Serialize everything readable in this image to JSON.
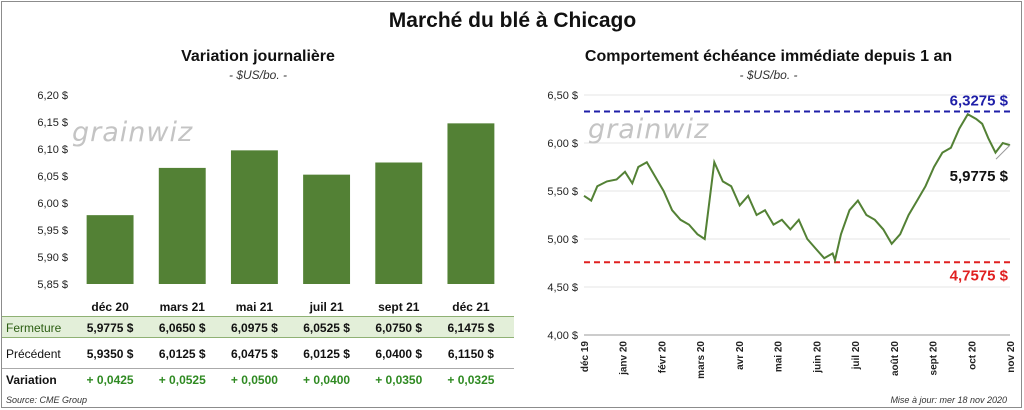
{
  "title": "Marché du blé à Chicago",
  "left": {
    "subtitle": "Variation journalière",
    "unit": "- $US/bo. -",
    "watermark_a": "grain",
    "watermark_b": "wiz",
    "y_ticks": [
      "6,20 $",
      "6,15 $",
      "6,10 $",
      "6,05 $",
      "6,00 $",
      "5,95 $",
      "5,90 $",
      "5,85 $"
    ],
    "table": {
      "close_label": "Fermeture",
      "prev_label": "Précédent",
      "var_label": "Variation",
      "close": [
        "5,9775  $",
        "6,0650  $",
        "6,0975  $",
        "6,0525  $",
        "6,0750  $",
        "6,1475  $"
      ],
      "prev": [
        "5,9350  $",
        "6,0125  $",
        "6,0475  $",
        "6,0125  $",
        "6,0400  $",
        "6,1150  $"
      ],
      "var": [
        "+ 0,0425",
        "+ 0,0525",
        "+ 0,0500",
        "+ 0,0400",
        "+ 0,0350",
        "+ 0,0325"
      ]
    }
  },
  "right": {
    "subtitle": "Comportement  échéance immédiate depuis 1 an",
    "unit": "- $US/bo. -",
    "watermark_a": "grain",
    "watermark_b": "wiz",
    "y_ticks": [
      "6,50 $",
      "6,00 $",
      "5,50 $",
      "5,00 $",
      "4,50 $",
      "4,00 $"
    ],
    "x_ticks": [
      "déc 19",
      "janv 20",
      "févr 20",
      "mars 20",
      "avr 20",
      "mai 20",
      "juin 20",
      "juil 20",
      "août 20",
      "sept 20",
      "oct 20",
      "nov 20"
    ],
    "high_label": "6,3275  $",
    "low_label": "4,7575  $",
    "last_label": "5,9775  $"
  },
  "colors": {
    "bar": "#538135",
    "line": "#538135",
    "high": "#1f1fa8",
    "low": "#e02020"
  },
  "source": "Source: CME Group",
  "updated": "Mise à jour: mer 18 nov 2020",
  "chart_data": [
    {
      "type": "bar",
      "categories": [
        "déc 20",
        "mars 21",
        "mai 21",
        "juil 21",
        "sept 21",
        "déc 21"
      ],
      "values": [
        5.9775,
        6.065,
        6.0975,
        6.0525,
        6.075,
        6.1475
      ],
      "title": "Variation journalière",
      "ylabel": "$US/bo.",
      "ylim": [
        5.85,
        6.2
      ]
    },
    {
      "type": "line",
      "title": "Comportement  échéance immédiate depuis 1 an",
      "ylabel": "$US/bo.",
      "ylim": [
        4.0,
        6.5
      ],
      "xlim": [
        "2019-12-01",
        "2020-11-18"
      ],
      "x": [
        "2019-12-01",
        "2019-12-07",
        "2019-12-12",
        "2019-12-20",
        "2019-12-28",
        "2020-01-04",
        "2020-01-10",
        "2020-01-15",
        "2020-01-22",
        "2020-01-29",
        "2020-02-05",
        "2020-02-12",
        "2020-02-19",
        "2020-02-26",
        "2020-03-04",
        "2020-03-10",
        "2020-03-14",
        "2020-03-18",
        "2020-03-25",
        "2020-04-01",
        "2020-04-08",
        "2020-04-15",
        "2020-04-22",
        "2020-04-29",
        "2020-05-06",
        "2020-05-13",
        "2020-05-20",
        "2020-05-27",
        "2020-06-03",
        "2020-06-10",
        "2020-06-17",
        "2020-06-24",
        "2020-06-26",
        "2020-07-01",
        "2020-07-08",
        "2020-07-15",
        "2020-07-22",
        "2020-07-29",
        "2020-08-05",
        "2020-08-12",
        "2020-08-19",
        "2020-08-26",
        "2020-09-02",
        "2020-09-09",
        "2020-09-16",
        "2020-09-23",
        "2020-09-30",
        "2020-10-07",
        "2020-10-14",
        "2020-10-21",
        "2020-10-26",
        "2020-10-31",
        "2020-11-06",
        "2020-11-12",
        "2020-11-18"
      ],
      "y": [
        5.45,
        5.4,
        5.55,
        5.6,
        5.62,
        5.7,
        5.58,
        5.75,
        5.8,
        5.65,
        5.5,
        5.3,
        5.2,
        5.15,
        5.05,
        5.0,
        5.4,
        5.8,
        5.6,
        5.55,
        5.35,
        5.45,
        5.25,
        5.3,
        5.15,
        5.2,
        5.1,
        5.2,
        5.0,
        4.9,
        4.8,
        4.85,
        4.78,
        5.05,
        5.3,
        5.4,
        5.25,
        5.2,
        5.1,
        4.95,
        5.05,
        5.25,
        5.4,
        5.55,
        5.75,
        5.9,
        5.95,
        6.15,
        6.3,
        6.25,
        6.2,
        6.05,
        5.9,
        6.0,
        5.9775
      ],
      "high": 6.3275,
      "low": 4.7575,
      "last": 5.9775
    }
  ]
}
